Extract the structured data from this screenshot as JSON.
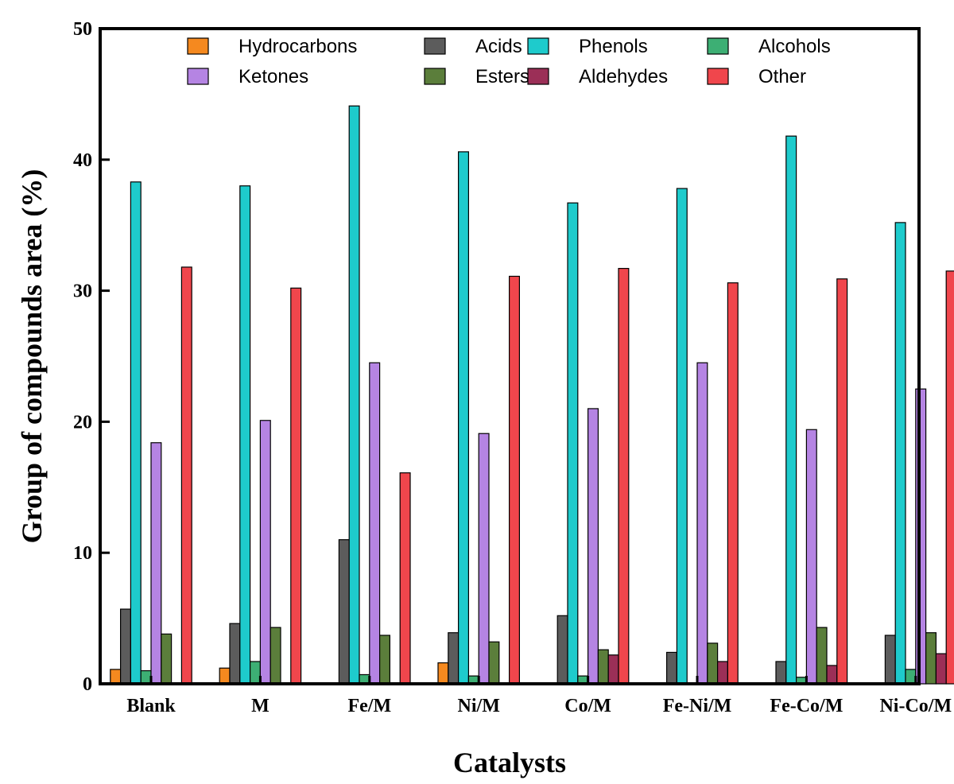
{
  "chart_data": {
    "type": "bar",
    "title": "",
    "xlabel": "Catalysts",
    "ylabel": "Group of compounds area (%)",
    "ylim": [
      0,
      50
    ],
    "yticks": [
      0,
      10,
      20,
      30,
      40,
      50
    ],
    "grid": false,
    "legend_position": "top",
    "categories": [
      "Blank",
      "M",
      "Fe/M",
      "Ni/M",
      "Co/M",
      "Fe-Ni/M",
      "Fe-Co/M",
      "Ni-Co/M"
    ],
    "series": [
      {
        "name": "Hydrocarbons",
        "color": "#f5891f",
        "values": [
          1.1,
          1.2,
          0,
          1.6,
          0,
          0,
          0,
          0
        ]
      },
      {
        "name": "Acids",
        "color": "#5c5c5c",
        "values": [
          5.7,
          4.6,
          11.0,
          3.9,
          5.2,
          2.4,
          1.7,
          3.7
        ]
      },
      {
        "name": "Phenols",
        "color": "#1ecbcc",
        "values": [
          38.3,
          38.0,
          44.1,
          40.6,
          36.7,
          37.8,
          41.8,
          35.2
        ]
      },
      {
        "name": "Alcohols",
        "color": "#3daf74",
        "values": [
          1.0,
          1.7,
          0.7,
          0.6,
          0.6,
          0,
          0.5,
          1.1
        ]
      },
      {
        "name": "Ketones",
        "color": "#b584e3",
        "values": [
          18.4,
          20.1,
          24.5,
          19.1,
          21.0,
          24.5,
          19.4,
          22.5
        ]
      },
      {
        "name": "Esters",
        "color": "#5b7e3b",
        "values": [
          3.8,
          4.3,
          3.7,
          3.2,
          2.6,
          3.1,
          4.3,
          3.9
        ]
      },
      {
        "name": "Aldehydes",
        "color": "#9b2f57",
        "values": [
          0,
          0,
          0,
          0,
          2.2,
          1.7,
          1.4,
          2.3
        ]
      },
      {
        "name": "Other",
        "color": "#f0464c",
        "values": [
          31.8,
          30.2,
          16.1,
          31.1,
          31.7,
          30.6,
          30.9,
          31.5
        ]
      }
    ]
  }
}
